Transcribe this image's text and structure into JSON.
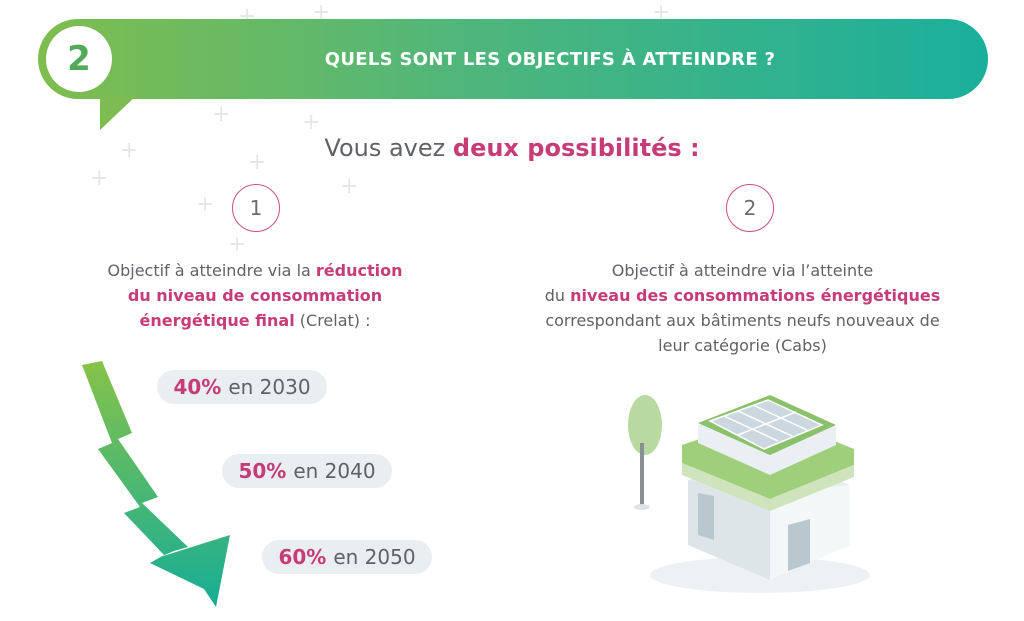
{
  "header": {
    "number": "2",
    "title": "QUELS SONT LES OBJECTIFS À ATTEINDRE  ?"
  },
  "subtitle": {
    "prefix": "Vous avez",
    "highlight": "deux possibilités :"
  },
  "options": [
    {
      "number": "1",
      "lines": [
        {
          "plain": "Objectif à atteindre via la ",
          "hl": "réduction"
        },
        {
          "plain": "",
          "hl": "du niveau de consommation"
        },
        {
          "hl": "énergétique final",
          "plain_after": " (Crelat) :"
        }
      ],
      "steps": [
        {
          "percent": "40%",
          "label": "en 2030"
        },
        {
          "percent": "50%",
          "label": "en 2040"
        },
        {
          "percent": "60%",
          "label": "en 2050"
        }
      ]
    },
    {
      "number": "2",
      "lines": [
        {
          "plain": "Objectif à atteindre via l’atteinte"
        },
        {
          "plain": "du ",
          "hl": "niveau des consommations énergétiques"
        },
        {
          "plain": "correspondant aux bâtiments neufs nouveaux de"
        },
        {
          "plain": "leur catégorie (Cabs)"
        }
      ]
    }
  ],
  "colors": {
    "accent": "#c63b78",
    "gradient_start": "#7fbd4e",
    "gradient_end": "#1aaf9c",
    "pill_bg": "#e9eef1"
  },
  "icons": {
    "arrow": "zigzag-down-arrow-icon",
    "building": "green-building-solar-icon"
  }
}
